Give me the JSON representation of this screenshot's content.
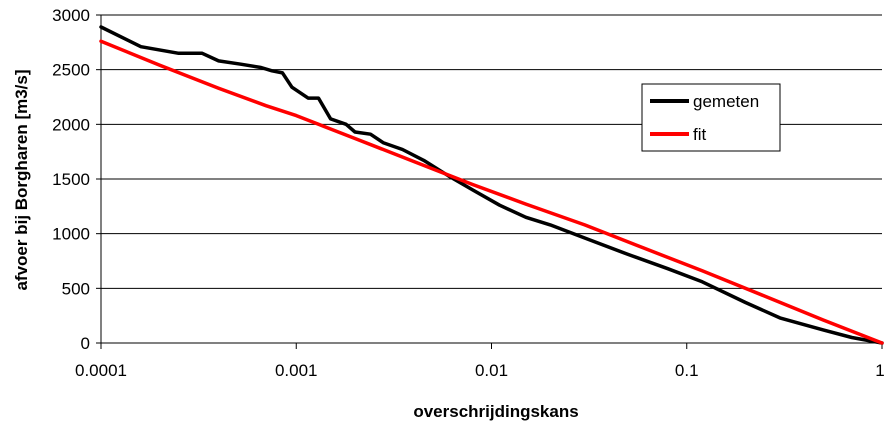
{
  "chart_data": {
    "type": "line",
    "title": "",
    "xlabel": "overschrijdingskans",
    "ylabel": "afvoer bij Borgharen [m3/s]",
    "x_scale": "log",
    "xlim": [
      0.0001,
      1
    ],
    "ylim": [
      0,
      3000
    ],
    "x_ticks": [
      "0.0001",
      "0.001",
      "0.01",
      "0.1",
      "1"
    ],
    "y_ticks": [
      "0",
      "500",
      "1000",
      "1500",
      "2000",
      "2500",
      "3000"
    ],
    "grid": "horizontal",
    "legend_position": "right",
    "series": [
      {
        "name": "gemeten",
        "color": "#000000",
        "x": [
          0.0001,
          0.00016,
          0.00025,
          0.00033,
          0.0004,
          0.00052,
          0.00066,
          0.00075,
          0.00085,
          0.00095,
          0.00115,
          0.0013,
          0.0015,
          0.0018,
          0.002,
          0.0024,
          0.0028,
          0.0035,
          0.0045,
          0.006,
          0.008,
          0.011,
          0.015,
          0.02,
          0.03,
          0.05,
          0.08,
          0.12,
          0.2,
          0.3,
          0.5,
          0.7,
          1
        ],
        "y": [
          2890,
          2710,
          2650,
          2650,
          2580,
          2550,
          2520,
          2490,
          2470,
          2340,
          2240,
          2240,
          2050,
          2000,
          1930,
          1910,
          1830,
          1770,
          1670,
          1530,
          1400,
          1260,
          1150,
          1080,
          960,
          810,
          680,
          560,
          370,
          230,
          120,
          50,
          0
        ]
      },
      {
        "name": "fit",
        "color": "#ff0000",
        "x": [
          0.0001,
          0.0002,
          0.0004,
          0.0007,
          0.001,
          0.0013,
          0.002,
          0.004,
          0.008,
          0.015,
          0.03,
          0.06,
          0.12,
          0.25,
          0.5,
          1
        ],
        "y": [
          2760,
          2540,
          2330,
          2170,
          2080,
          2000,
          1870,
          1660,
          1450,
          1270,
          1080,
          870,
          660,
          430,
          210,
          0
        ]
      }
    ]
  }
}
